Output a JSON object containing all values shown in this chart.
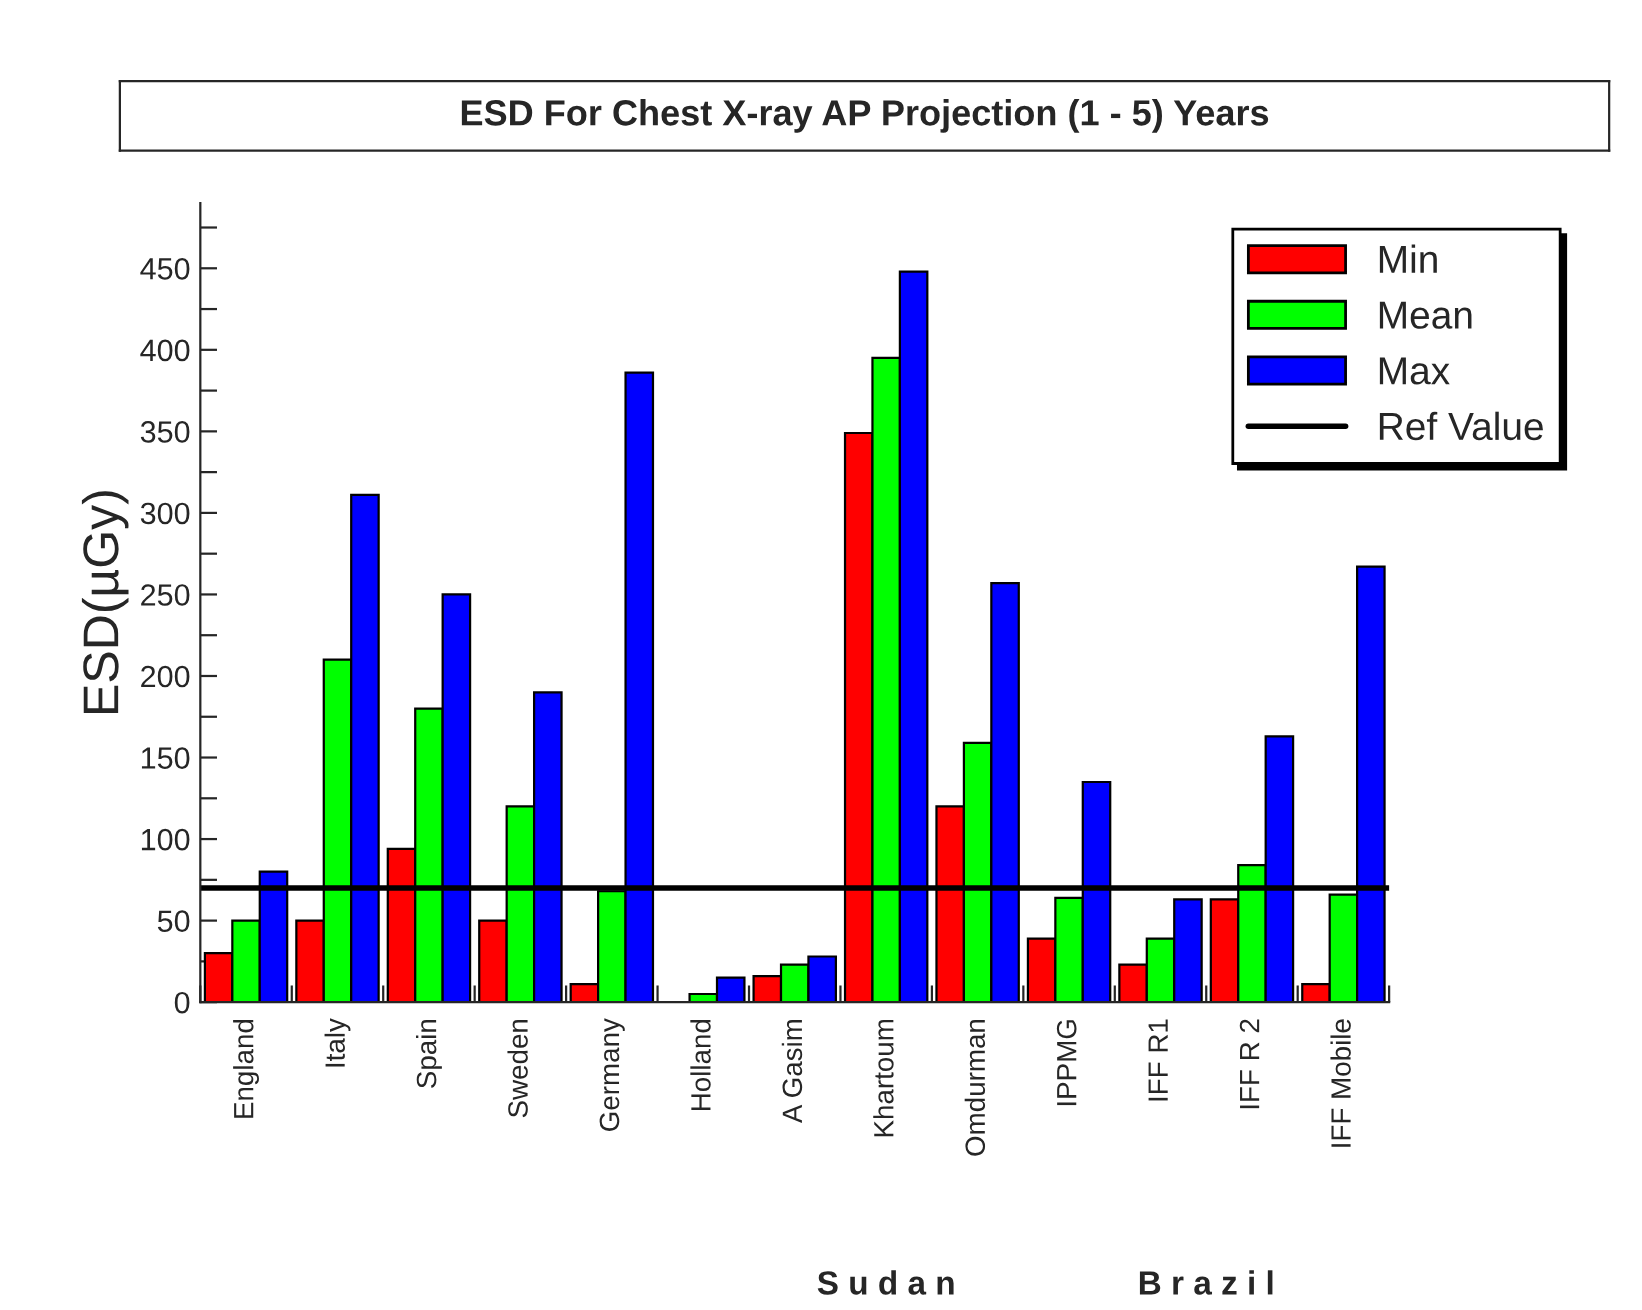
{
  "chart_data": {
    "type": "bar",
    "title": "ESD For Chest X-ray AP Projection (1 - 5) Years",
    "ylabel": "ESD(µGy)",
    "categories": [
      "England",
      "Italy",
      "Spain",
      "Sweden",
      "Germany",
      "Holland",
      "A Gasim",
      "Khartoum",
      "Omdurman",
      "IPPMG",
      "IFF R1",
      "IFF R 2",
      "IFF Mobile"
    ],
    "series": [
      {
        "name": "Min",
        "color": "#ff0000",
        "values": [
          30,
          50,
          94,
          50,
          11,
          null,
          16,
          349,
          120,
          39,
          23,
          63,
          11
        ]
      },
      {
        "name": "Mean",
        "color": "#00ff00",
        "values": [
          50,
          210,
          180,
          120,
          68,
          5,
          23,
          395,
          159,
          64,
          39,
          84,
          66
        ]
      },
      {
        "name": "Max",
        "color": "#0000ff",
        "values": [
          80,
          311,
          250,
          190,
          386,
          15,
          28,
          448,
          257,
          135,
          63,
          163,
          267
        ]
      }
    ],
    "ref_lines": [
      {
        "axis": "y",
        "value": 70,
        "label": "Ref Value",
        "color": "#000000"
      }
    ],
    "annotations": [
      "S u d a n",
      "B r a z i l"
    ],
    "ylim": [
      0,
      490
    ],
    "yticks": [
      0,
      {
        "value": 25,
        "label": null
      },
      50,
      {
        "value": 75,
        "label": null
      },
      100,
      {
        "value": 125,
        "label": null
      },
      150,
      {
        "value": 175,
        "label": null
      },
      200,
      {
        "value": 225,
        "label": null
      },
      250,
      {
        "value": 275,
        "label": null
      },
      300,
      {
        "value": 325,
        "label": null
      },
      350,
      {
        "value": 375,
        "label": null
      },
      400,
      {
        "value": 425,
        "label": null
      },
      450,
      {
        "value": 475,
        "label": null
      }
    ],
    "grid": false,
    "legend": "top right"
  }
}
